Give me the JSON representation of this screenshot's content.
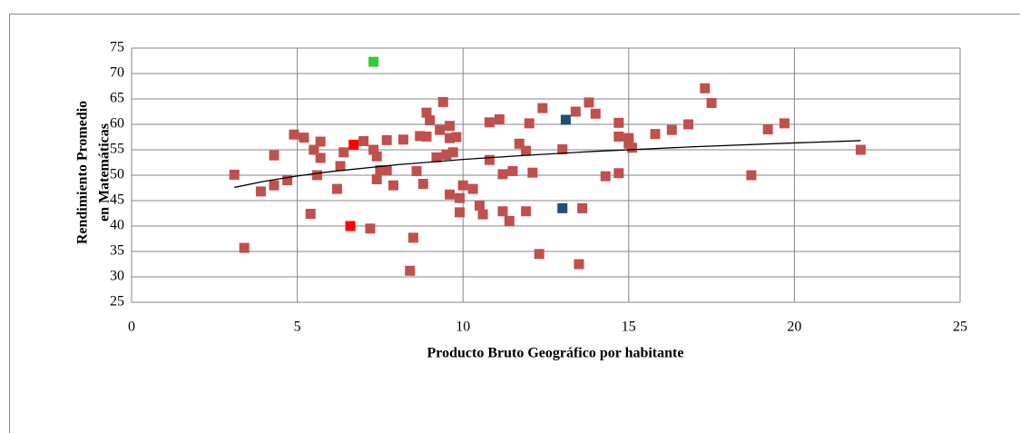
{
  "chart_data": {
    "type": "scatter",
    "xlabel": "Producto Bruto Geográfico por habitante",
    "ylabel": [
      "Rendimiento Promedio",
      "en Matemáticas"
    ],
    "xlim": [
      0,
      25
    ],
    "xticks": [
      0,
      5,
      10,
      15,
      20,
      25
    ],
    "ylim": [
      25,
      75
    ],
    "yticks": [
      25,
      30,
      35,
      40,
      45,
      50,
      55,
      60,
      65,
      70,
      75
    ],
    "grid": true,
    "marker": "square",
    "series": [
      {
        "color": "#c0504d",
        "x": [
          3.1,
          3.4,
          3.9,
          4.3,
          4.3,
          4.7,
          4.9,
          5.2,
          5.4,
          5.5,
          5.6,
          5.7,
          5.7,
          6.2,
          6.3,
          6.4,
          7.0,
          7.2,
          7.3,
          7.4,
          7.4,
          7.5,
          7.7,
          7.7,
          7.9,
          8.2,
          8.4,
          8.5,
          8.6,
          8.7,
          8.8,
          8.9,
          8.9,
          9.0,
          9.2,
          9.3,
          9.4,
          9.5,
          9.6,
          9.6,
          9.6,
          9.7,
          9.8,
          9.9,
          9.9,
          10.0,
          10.3,
          10.5,
          10.6,
          10.8,
          10.8,
          11.1,
          11.2,
          11.2,
          11.4,
          11.5,
          11.7,
          11.9,
          11.9,
          12.0,
          12.1,
          12.3,
          12.4,
          13.0,
          13.4,
          13.5,
          13.6,
          13.8,
          14.0,
          14.3,
          14.7,
          14.7,
          14.7,
          15.0,
          15.0,
          15.1,
          15.8,
          16.3,
          16.8,
          17.3,
          17.5,
          18.7,
          19.2,
          19.7,
          22.0
        ],
        "values": [
          50.1,
          35.7,
          46.8,
          53.9,
          48.0,
          49.0,
          58.0,
          57.4,
          42.4,
          55.0,
          50.0,
          56.6,
          53.4,
          47.3,
          51.8,
          54.5,
          56.7,
          39.5,
          55.0,
          53.7,
          49.2,
          51.0,
          56.9,
          50.9,
          48.0,
          57.0,
          31.2,
          37.7,
          50.8,
          57.7,
          48.3,
          57.6,
          62.3,
          60.8,
          53.5,
          58.9,
          64.4,
          54.0,
          57.3,
          59.7,
          46.2,
          54.5,
          57.5,
          42.7,
          45.5,
          48.0,
          47.3,
          44.0,
          42.3,
          53.0,
          60.4,
          61.0,
          50.2,
          42.9,
          41.0,
          50.8,
          56.2,
          54.8,
          42.9,
          60.2,
          50.5,
          34.5,
          63.2,
          55.1,
          62.5,
          32.5,
          43.5,
          64.3,
          62.1,
          49.8,
          60.3,
          57.6,
          50.4,
          56.2,
          57.3,
          55.4,
          58.1,
          58.9,
          60.0,
          67.1,
          64.2,
          50.0,
          59.0,
          60.2,
          55.0
        ]
      },
      {
        "color": "#ff0000",
        "x": [
          6.7,
          6.6
        ],
        "values": [
          56.0,
          40.0
        ]
      },
      {
        "color": "#33cc33",
        "x": [
          7.3
        ],
        "values": [
          72.3
        ]
      },
      {
        "color": "#1f4e79",
        "x": [
          13.1,
          13.0
        ],
        "values": [
          60.9,
          43.5
        ]
      }
    ],
    "trendline": {
      "color": "#000000",
      "x": [
        3.1,
        4,
        5,
        6,
        8,
        10,
        12,
        14,
        17,
        20,
        22
      ],
      "values": [
        47.6,
        48.8,
        49.85,
        50.7,
        52.05,
        53.1,
        53.95,
        54.7,
        55.6,
        56.35,
        56.8
      ]
    }
  }
}
